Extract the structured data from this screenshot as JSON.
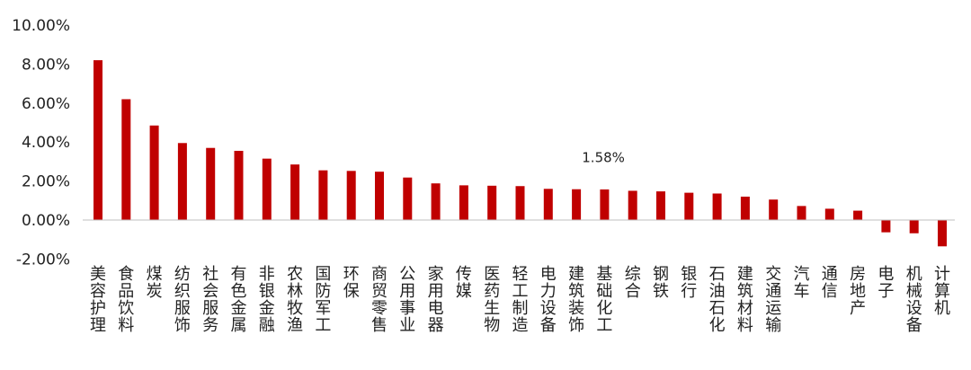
{
  "chart_data": {
    "type": "bar",
    "categories": [
      "美容护理",
      "食品饮料",
      "煤炭",
      "纺织服饰",
      "社会服务",
      "有色金属",
      "非银金融",
      "农林牧渔",
      "国防军工",
      "环保",
      "商贸零售",
      "公用事业",
      "家用电器",
      "传媒",
      "医药生物",
      "轻工制造",
      "电力设备",
      "建筑装饰",
      "基础化工",
      "综合",
      "钢铁",
      "银行",
      "石油石化",
      "建筑材料",
      "交通运输",
      "汽车",
      "通信",
      "房地产",
      "电子",
      "机械设备",
      "计算机"
    ],
    "values": [
      8.2,
      6.2,
      4.85,
      3.95,
      3.7,
      3.55,
      3.15,
      2.85,
      2.55,
      2.52,
      2.48,
      2.18,
      1.88,
      1.78,
      1.76,
      1.74,
      1.6,
      1.58,
      1.57,
      1.5,
      1.47,
      1.4,
      1.36,
      1.2,
      1.05,
      0.72,
      0.58,
      0.48,
      -0.63,
      -0.68,
      -1.35
    ],
    "yticks": [
      "-2.00%",
      "0.00%",
      "2.00%",
      "4.00%",
      "6.00%",
      "8.00%",
      "10.00%"
    ],
    "ylim": [
      -2,
      10
    ],
    "annotation": {
      "text": "1.58%",
      "category": "建筑装饰"
    },
    "bar_color": "#C00000",
    "axis_color": "#bfbfbf",
    "grid": false,
    "legend": false
  }
}
